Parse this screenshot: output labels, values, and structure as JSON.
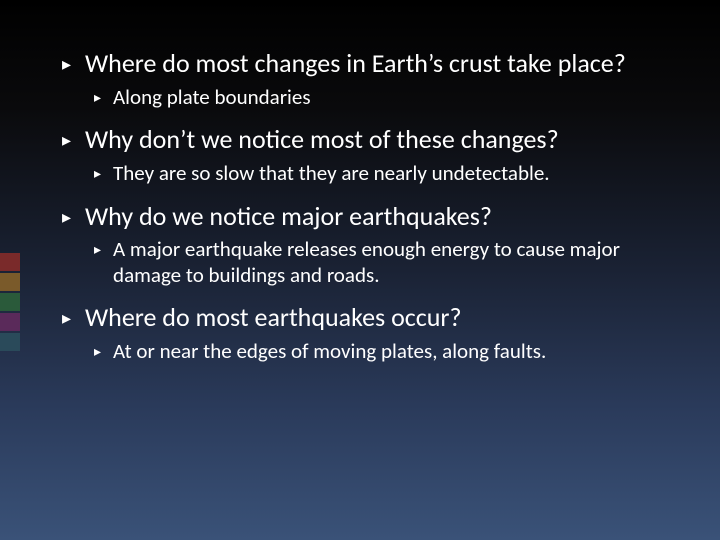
{
  "accent_colors": [
    "#7a2a2a",
    "#7a5a2a",
    "#2a5a3a",
    "#5a2a5a",
    "#2a4a5a"
  ],
  "bullet_main": "▸",
  "bullet_sub": "▸",
  "items": [
    {
      "question": "Where do most changes in Earth’s crust take place?",
      "answer": "Along plate boundaries"
    },
    {
      "question": "Why don’t we notice most of these changes?",
      "answer": "They are so slow that they are nearly undetectable."
    },
    {
      "question": "Why do we notice major earthquakes?",
      "answer": "A major earthquake releases enough energy to cause major damage to buildings and roads."
    },
    {
      "question": "Where do most earthquakes occur?",
      "answer": "At or near the edges of moving plates, along faults."
    }
  ]
}
